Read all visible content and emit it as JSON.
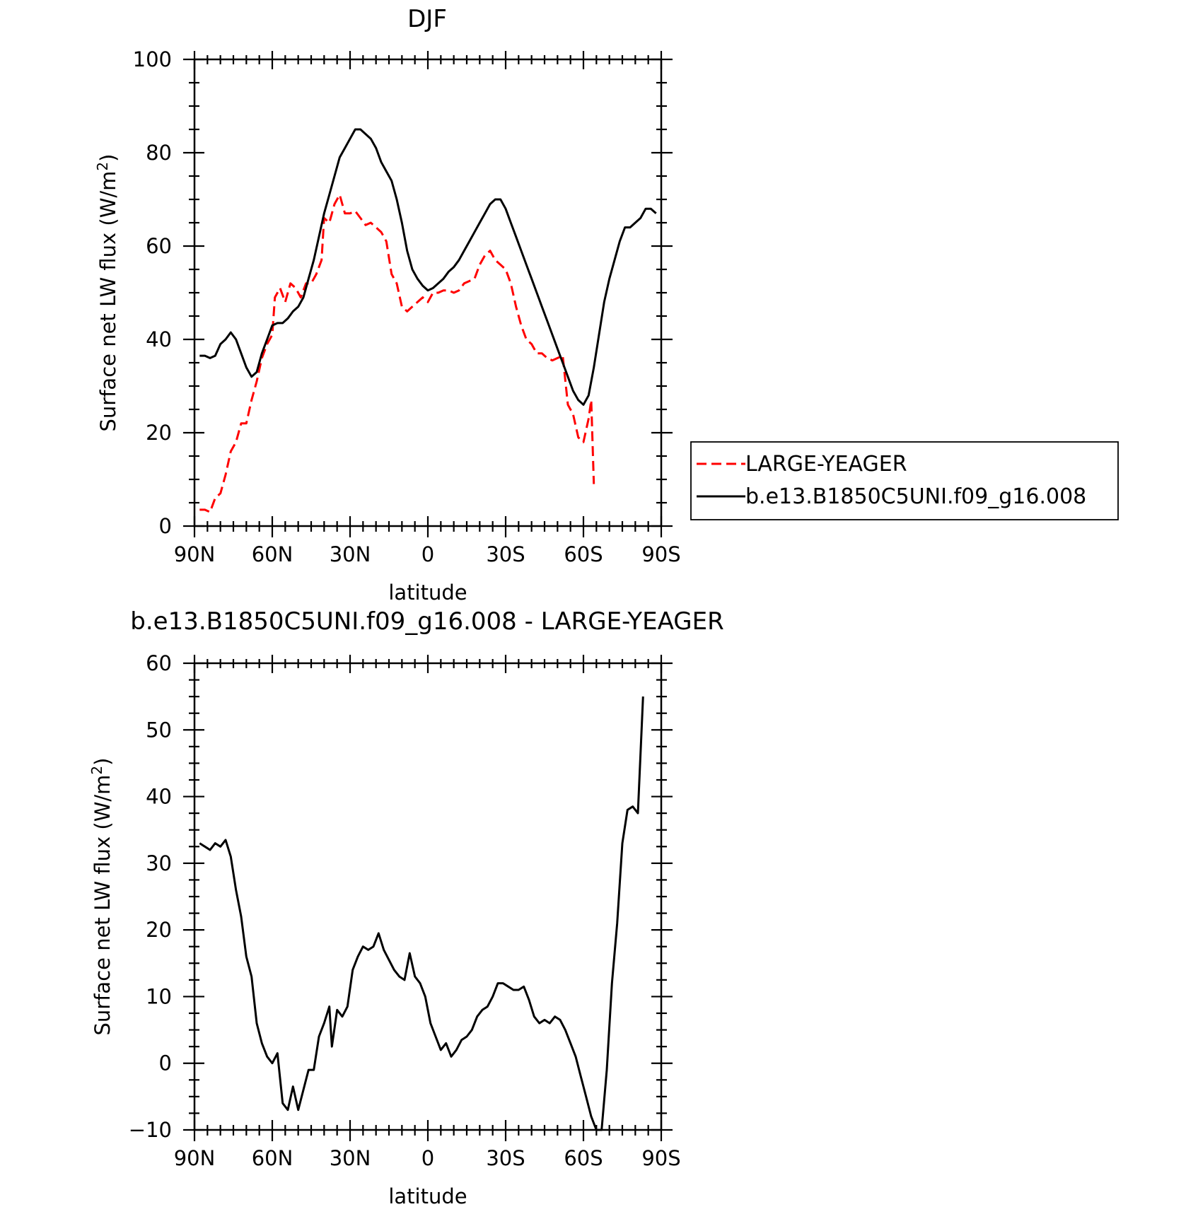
{
  "chart_data": [
    {
      "type": "line",
      "title": "DJF",
      "xlabel": "latitude",
      "ylabel": "Surface net LW flux (W/m²)",
      "ylabel_parts": {
        "main": "Surface net LW flux (W/m",
        "sup": "2",
        "close": ")"
      },
      "xlim": [
        90,
        -90
      ],
      "ylim": [
        0,
        100
      ],
      "x_ticks": [
        {
          "value": 90,
          "label": "90N"
        },
        {
          "value": 60,
          "label": "60N"
        },
        {
          "value": 30,
          "label": "30N"
        },
        {
          "value": 0,
          "label": "0"
        },
        {
          "value": -30,
          "label": "30S"
        },
        {
          "value": -60,
          "label": "60S"
        },
        {
          "value": -90,
          "label": "90S"
        }
      ],
      "y_ticks": [
        {
          "value": 0,
          "label": "0"
        },
        {
          "value": 20,
          "label": "20"
        },
        {
          "value": 40,
          "label": "40"
        },
        {
          "value": 60,
          "label": "60"
        },
        {
          "value": 80,
          "label": "80"
        },
        {
          "value": 100,
          "label": "100"
        }
      ],
      "legend_position": "right",
      "series": [
        {
          "name": "LARGE-YEAGER",
          "color": "#ff0000",
          "dash": "dashed",
          "points": [
            [
              88,
              3.5
            ],
            [
              86,
              3.5
            ],
            [
              84,
              3
            ],
            [
              82,
              6
            ],
            [
              80,
              7
            ],
            [
              78,
              11
            ],
            [
              76,
              16
            ],
            [
              74,
              18
            ],
            [
              72,
              22
            ],
            [
              70,
              22
            ],
            [
              68,
              27
            ],
            [
              66,
              31
            ],
            [
              64,
              36
            ],
            [
              62,
              39
            ],
            [
              60,
              41
            ],
            [
              59,
              49
            ],
            [
              57,
              51
            ],
            [
              55,
              48
            ],
            [
              53,
              52
            ],
            [
              51,
              51
            ],
            [
              49,
              49
            ],
            [
              47,
              52
            ],
            [
              45,
              52
            ],
            [
              43,
              54
            ],
            [
              41,
              57
            ],
            [
              40,
              66
            ],
            [
              38,
              65
            ],
            [
              36,
              69
            ],
            [
              34,
              71
            ],
            [
              32,
              67
            ],
            [
              30,
              67
            ],
            [
              28,
              67.5
            ],
            [
              26,
              66
            ],
            [
              24,
              64.5
            ],
            [
              22,
              65
            ],
            [
              20,
              64
            ],
            [
              18,
              63
            ],
            [
              16,
              61
            ],
            [
              14,
              54
            ],
            [
              12,
              52
            ],
            [
              10,
              47
            ],
            [
              8,
              46
            ],
            [
              6,
              47
            ],
            [
              4,
              48
            ],
            [
              2,
              49
            ],
            [
              0,
              48
            ],
            [
              -2,
              50
            ],
            [
              -4,
              50
            ],
            [
              -6,
              50.5
            ],
            [
              -8,
              50.5
            ],
            [
              -10,
              50
            ],
            [
              -12,
              50.5
            ],
            [
              -14,
              52
            ],
            [
              -16,
              52.5
            ],
            [
              -18,
              53
            ],
            [
              -20,
              56
            ],
            [
              -22,
              58
            ],
            [
              -24,
              59
            ],
            [
              -26,
              57
            ],
            [
              -28,
              56
            ],
            [
              -30,
              55
            ],
            [
              -32,
              52
            ],
            [
              -34,
              47
            ],
            [
              -36,
              43
            ],
            [
              -38,
              40
            ],
            [
              -40,
              39
            ],
            [
              -42,
              37
            ],
            [
              -44,
              37
            ],
            [
              -46,
              36
            ],
            [
              -48,
              35.5
            ],
            [
              -50,
              36
            ],
            [
              -52,
              36.5
            ],
            [
              -54,
              26
            ],
            [
              -56,
              24
            ],
            [
              -58,
              19
            ],
            [
              -60,
              18
            ],
            [
              -62,
              23
            ],
            [
              -63,
              27
            ],
            [
              -64,
              9
            ]
          ]
        },
        {
          "name": "b.e13.B1850C5UNI.f09_g16.008",
          "color": "#000000",
          "dash": "solid",
          "points": [
            [
              88,
              36.5
            ],
            [
              86,
              36.5
            ],
            [
              84,
              36
            ],
            [
              82,
              36.5
            ],
            [
              80,
              39
            ],
            [
              78,
              40
            ],
            [
              76,
              41.5
            ],
            [
              74,
              40
            ],
            [
              72,
              37
            ],
            [
              70,
              34
            ],
            [
              68,
              32
            ],
            [
              66,
              33
            ],
            [
              64,
              37
            ],
            [
              62,
              40
            ],
            [
              60,
              43
            ],
            [
              58,
              43.5
            ],
            [
              56,
              43.5
            ],
            [
              54,
              44.5
            ],
            [
              52,
              46
            ],
            [
              50,
              47
            ],
            [
              48,
              49
            ],
            [
              46,
              53
            ],
            [
              44,
              57
            ],
            [
              42,
              62
            ],
            [
              40,
              67
            ],
            [
              38,
              71
            ],
            [
              36,
              75
            ],
            [
              34,
              79
            ],
            [
              32,
              81
            ],
            [
              30,
              83
            ],
            [
              28,
              85
            ],
            [
              26,
              85
            ],
            [
              24,
              84
            ],
            [
              22,
              83
            ],
            [
              20,
              81
            ],
            [
              18,
              78
            ],
            [
              16,
              76
            ],
            [
              14,
              74
            ],
            [
              12,
              70
            ],
            [
              10,
              65
            ],
            [
              8,
              59
            ],
            [
              6,
              55
            ],
            [
              4,
              53
            ],
            [
              2,
              51.5
            ],
            [
              0,
              50.5
            ],
            [
              -2,
              51
            ],
            [
              -4,
              52
            ],
            [
              -6,
              53
            ],
            [
              -8,
              54.5
            ],
            [
              -10,
              55.5
            ],
            [
              -12,
              57
            ],
            [
              -14,
              59
            ],
            [
              -16,
              61
            ],
            [
              -18,
              63
            ],
            [
              -20,
              65
            ],
            [
              -22,
              67
            ],
            [
              -24,
              69
            ],
            [
              -26,
              70
            ],
            [
              -28,
              70
            ],
            [
              -30,
              68
            ],
            [
              -32,
              65
            ],
            [
              -34,
              62
            ],
            [
              -36,
              59
            ],
            [
              -38,
              56
            ],
            [
              -40,
              53
            ],
            [
              -42,
              50
            ],
            [
              -44,
              47
            ],
            [
              -46,
              44
            ],
            [
              -48,
              41
            ],
            [
              -50,
              38
            ],
            [
              -52,
              35
            ],
            [
              -54,
              32
            ],
            [
              -56,
              29
            ],
            [
              -58,
              27
            ],
            [
              -60,
              26
            ],
            [
              -62,
              28
            ],
            [
              -64,
              34
            ],
            [
              -66,
              41
            ],
            [
              -68,
              48
            ],
            [
              -70,
              53
            ],
            [
              -72,
              57
            ],
            [
              -74,
              61
            ],
            [
              -76,
              64
            ],
            [
              -78,
              64
            ],
            [
              -80,
              65
            ],
            [
              -82,
              66
            ],
            [
              -84,
              68
            ],
            [
              -86,
              68
            ],
            [
              -88,
              67
            ]
          ]
        }
      ]
    },
    {
      "type": "line",
      "title": "b.e13.B1850C5UNI.f09_g16.008 - LARGE-YEAGER",
      "xlabel": "latitude",
      "ylabel": "Surface net LW flux (W/m²)",
      "ylabel_parts": {
        "main": "Surface net LW flux (W/m",
        "sup": "2",
        "close": ")"
      },
      "xlim": [
        90,
        -90
      ],
      "ylim": [
        -10,
        60
      ],
      "x_ticks": [
        {
          "value": 90,
          "label": "90N"
        },
        {
          "value": 60,
          "label": "60N"
        },
        {
          "value": 30,
          "label": "30N"
        },
        {
          "value": 0,
          "label": "0"
        },
        {
          "value": -30,
          "label": "30S"
        },
        {
          "value": -60,
          "label": "60S"
        },
        {
          "value": -90,
          "label": "90S"
        }
      ],
      "y_ticks": [
        {
          "value": -10,
          "label": "−10"
        },
        {
          "value": 0,
          "label": "0"
        },
        {
          "value": 10,
          "label": "10"
        },
        {
          "value": 20,
          "label": "20"
        },
        {
          "value": 30,
          "label": "30"
        },
        {
          "value": 40,
          "label": "40"
        },
        {
          "value": 50,
          "label": "50"
        },
        {
          "value": 60,
          "label": "60"
        }
      ],
      "series": [
        {
          "color": "#000000",
          "dash": "solid",
          "points": [
            [
              88,
              33
            ],
            [
              86,
              32.5
            ],
            [
              84,
              32
            ],
            [
              82,
              33
            ],
            [
              80,
              32.5
            ],
            [
              78,
              33.5
            ],
            [
              76,
              31
            ],
            [
              74,
              26
            ],
            [
              72,
              22
            ],
            [
              70,
              16
            ],
            [
              68,
              13
            ],
            [
              66,
              6
            ],
            [
              64,
              3
            ],
            [
              62,
              1
            ],
            [
              60,
              0
            ],
            [
              58,
              1.5
            ],
            [
              56,
              -6
            ],
            [
              54,
              -7
            ],
            [
              52,
              -3.5
            ],
            [
              50,
              -7
            ],
            [
              48,
              -4
            ],
            [
              46,
              -1
            ],
            [
              44,
              -1
            ],
            [
              42,
              4
            ],
            [
              40,
              6
            ],
            [
              38,
              8.5
            ],
            [
              37,
              2.5
            ],
            [
              35,
              8
            ],
            [
              33,
              7
            ],
            [
              31,
              8.5
            ],
            [
              29,
              14
            ],
            [
              27,
              16
            ],
            [
              25,
              17.5
            ],
            [
              23,
              17
            ],
            [
              21,
              17.5
            ],
            [
              19,
              19.5
            ],
            [
              17,
              17
            ],
            [
              15,
              15.5
            ],
            [
              13,
              14
            ],
            [
              11,
              13
            ],
            [
              9,
              12.5
            ],
            [
              7,
              16.5
            ],
            [
              5,
              13
            ],
            [
              3,
              12
            ],
            [
              1,
              10
            ],
            [
              -1,
              6
            ],
            [
              -3,
              4
            ],
            [
              -5,
              2
            ],
            [
              -7,
              3
            ],
            [
              -9,
              1
            ],
            [
              -11,
              2
            ],
            [
              -13,
              3.5
            ],
            [
              -15,
              4
            ],
            [
              -17,
              5
            ],
            [
              -19,
              7
            ],
            [
              -21,
              8
            ],
            [
              -23,
              8.5
            ],
            [
              -25,
              10
            ],
            [
              -27,
              12
            ],
            [
              -29,
              12
            ],
            [
              -31,
              11.5
            ],
            [
              -33,
              11
            ],
            [
              -35,
              11
            ],
            [
              -37,
              11.5
            ],
            [
              -39,
              9.5
            ],
            [
              -41,
              7
            ],
            [
              -43,
              6
            ],
            [
              -45,
              6.5
            ],
            [
              -47,
              6
            ],
            [
              -49,
              7
            ],
            [
              -51,
              6.5
            ],
            [
              -53,
              5
            ],
            [
              -55,
              3
            ],
            [
              -57,
              1
            ],
            [
              -59,
              -2
            ],
            [
              -61,
              -5
            ],
            [
              -63,
              -8
            ],
            [
              -65,
              -10
            ],
            [
              -67,
              -10
            ],
            [
              -69,
              -1
            ],
            [
              -71,
              12
            ],
            [
              -73,
              21
            ],
            [
              -75,
              33
            ],
            [
              -77,
              38
            ],
            [
              -79,
              38.5
            ],
            [
              -81,
              37.5
            ],
            [
              -83,
              55
            ]
          ]
        }
      ]
    }
  ],
  "legend_lines": [
    {
      "label": "LARGE-YEAGER",
      "color": "#ff0000",
      "dash": "dashed"
    },
    {
      "label": "b.e13.B1850C5UNI.f09_g16.008",
      "color": "#000000",
      "dash": "solid"
    }
  ]
}
